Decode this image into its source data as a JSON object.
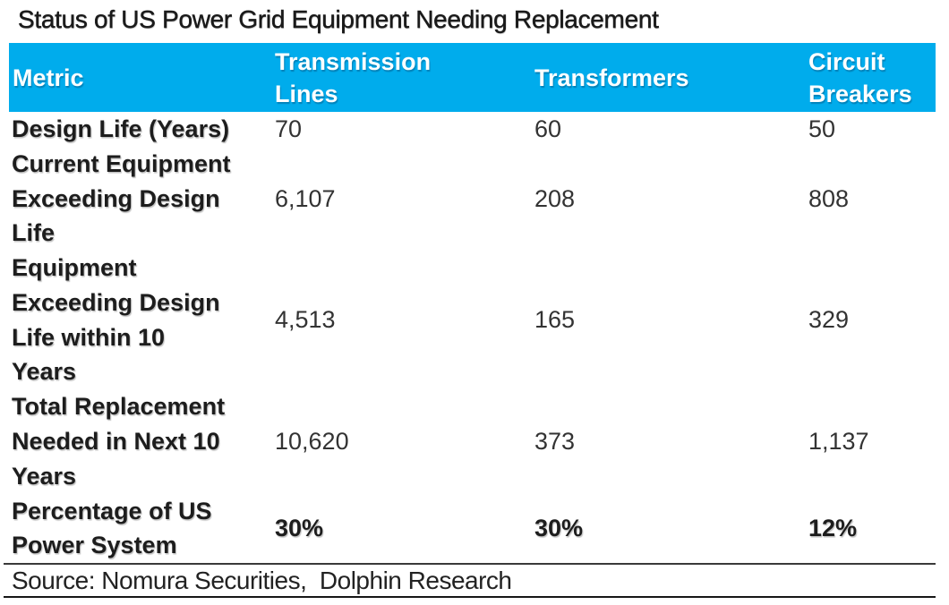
{
  "chart_data": {
    "type": "table",
    "title": "Status of US Power Grid Equipment Needing Replacement",
    "columns": [
      "Metric",
      "Transmission Lines",
      "Transformers",
      "Circuit Breakers"
    ],
    "columns_display": [
      "Metric",
      "Transmission\nLines",
      "Transformers",
      "Circuit\nBreakers"
    ],
    "rows": [
      {
        "metric": "Design Life (Years)",
        "metric_display": "Design Life (Years)",
        "values": [
          "70",
          "60",
          "50"
        ],
        "emphasis": false
      },
      {
        "metric": "Current Equipment Exceeding Design Life",
        "metric_display": "Current Equipment\nExceeding Design\nLife",
        "values": [
          "6,107",
          "208",
          "808"
        ],
        "emphasis": false
      },
      {
        "metric": "Equipment Exceeding Design Life within 10 Years",
        "metric_display": "Equipment\nExceeding Design\nLife within 10\nYears",
        "values": [
          "4,513",
          "165",
          "329"
        ],
        "emphasis": false
      },
      {
        "metric": "Total Replacement Needed in Next 10 Years",
        "metric_display": "Total Replacement\nNeeded in Next 10\nYears",
        "values": [
          "10,620",
          "373",
          "1,137"
        ],
        "emphasis": false
      },
      {
        "metric": "Percentage of US Power System",
        "metric_display": "Percentage of US\nPower System",
        "values": [
          "30%",
          "30%",
          "12%"
        ],
        "emphasis": true
      }
    ],
    "source": "Source: Nomura Securities,  Dolphin Research",
    "layout": {
      "legend": "none",
      "grid": "off",
      "header_fill": true
    }
  },
  "colors": {
    "header_bg": "#00ACEC",
    "header_text": "#FFFFFF",
    "body_text": "#1E1E1E",
    "rule_line": "#2B2B2B"
  }
}
